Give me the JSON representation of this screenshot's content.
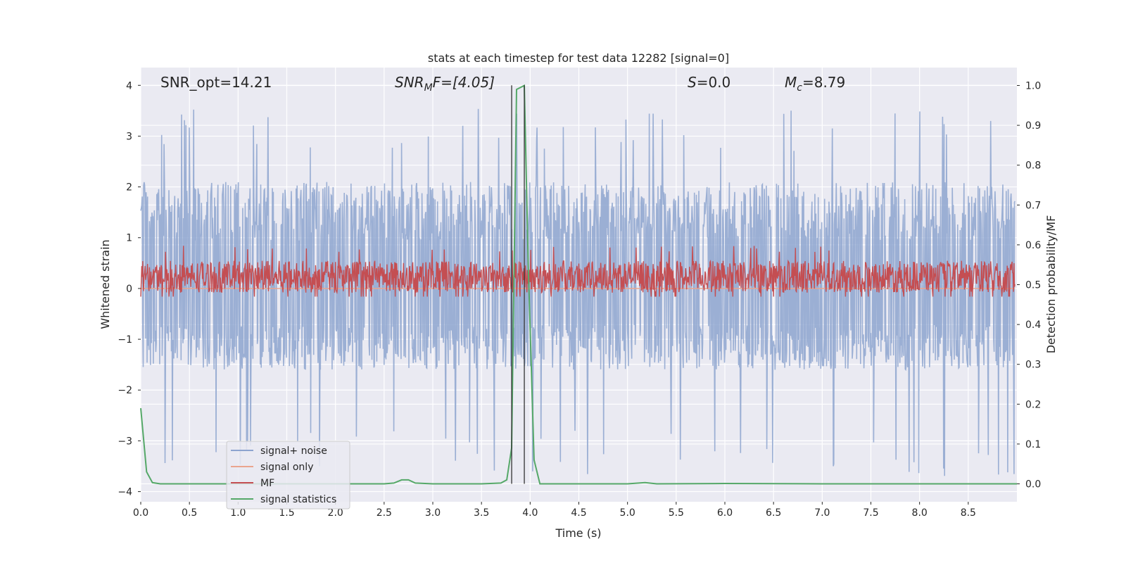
{
  "chart_data": {
    "type": "line",
    "title": "stats at each timestep for test data 12282 [signal=0]",
    "xlabel": "Time (s)",
    "ylabel": "Whitened strain",
    "y2label": "Detection probability/MF",
    "xlim": [
      0,
      9.0
    ],
    "ylim": [
      -4.2,
      4.35
    ],
    "y2lim": [
      -0.045,
      1.045
    ],
    "x_ticks": [
      0.0,
      0.5,
      1.0,
      1.5,
      2.0,
      2.5,
      3.0,
      3.5,
      4.0,
      4.5,
      5.0,
      5.5,
      6.0,
      6.5,
      7.0,
      7.5,
      8.0,
      8.5
    ],
    "x_tick_labels": [
      "0.0",
      "0.5",
      "1.0",
      "1.5",
      "2.0",
      "2.5",
      "3.0",
      "3.5",
      "4.0",
      "4.5",
      "5.0",
      "5.5",
      "6.0",
      "6.5",
      "7.0",
      "7.5",
      "8.0",
      "8.5"
    ],
    "y_ticks": [
      -4,
      -3,
      -2,
      -1,
      0,
      1,
      2,
      3,
      4
    ],
    "y_tick_labels": [
      "−4",
      "−3",
      "−2",
      "−1",
      "0",
      "1",
      "2",
      "3",
      "4"
    ],
    "y2_ticks": [
      0.0,
      0.1,
      0.2,
      0.3,
      0.4,
      0.5,
      0.6,
      0.7,
      0.8,
      0.9,
      1.0
    ],
    "y2_tick_labels": [
      "0.0",
      "0.1",
      "0.2",
      "0.3",
      "0.4",
      "0.5",
      "0.6",
      "0.7",
      "0.8",
      "0.9",
      "1.0"
    ],
    "grid": true,
    "annotations": [
      {
        "id": "snr-opt",
        "text": "SNR_opt=14.21"
      },
      {
        "id": "snr-mf",
        "text": "SNR",
        "sub": "M",
        "tail": "F=[4.05]",
        "italic": true
      },
      {
        "id": "s-value",
        "text": "S",
        "tail": "=0.0",
        "italic": true
      },
      {
        "id": "mc-value",
        "text": "M",
        "sub": "c",
        "tail": "=8.79",
        "italic": true
      }
    ],
    "vertical_lines": [
      3.81,
      3.94
    ],
    "legend": {
      "location": "lower-left",
      "entries": [
        {
          "label": "signal+ noise",
          "color": "#8da4cf"
        },
        {
          "label": "signal only",
          "color": "#eaa58e"
        },
        {
          "label": "MF",
          "color": "#c44e52"
        },
        {
          "label": "signal statistics",
          "color": "#55a868"
        }
      ]
    },
    "series": [
      {
        "name": "signal+ noise",
        "axis": "left",
        "color": "#8da4cf",
        "kind": "noise",
        "typical_range": [
          -1.6,
          2.1
        ],
        "extreme_range": [
          -3.7,
          3.55
        ]
      },
      {
        "name": "signal only",
        "axis": "left",
        "color": "#eaa58e",
        "kind": "constant",
        "value": 0.0
      },
      {
        "name": "MF",
        "axis": "right",
        "color": "#c44e52",
        "kind": "noise",
        "typical_range": [
          0.48,
          0.56
        ],
        "extreme_range": [
          0.47,
          0.6
        ]
      },
      {
        "name": "signal statistics",
        "axis": "right",
        "color": "#55a868",
        "kind": "line",
        "x": [
          0.0,
          0.06,
          0.12,
          0.2,
          0.5,
          1.0,
          2.0,
          2.5,
          2.6,
          2.68,
          2.75,
          2.82,
          3.0,
          3.5,
          3.7,
          3.76,
          3.81,
          3.86,
          3.94,
          3.98,
          4.04,
          4.1,
          4.2,
          5.0,
          5.18,
          5.3,
          6.0,
          7.0,
          8.0,
          9.0
        ],
        "y": [
          0.19,
          0.03,
          0.003,
          0.0,
          0.0,
          0.0,
          0.0,
          0.0,
          0.002,
          0.01,
          0.01,
          0.002,
          0.0,
          0.0,
          0.002,
          0.01,
          0.09,
          0.99,
          1.0,
          0.55,
          0.06,
          0.0,
          0.0,
          0.0,
          0.003,
          0.0,
          0.001,
          0.0,
          0.0,
          0.0
        ]
      }
    ]
  }
}
